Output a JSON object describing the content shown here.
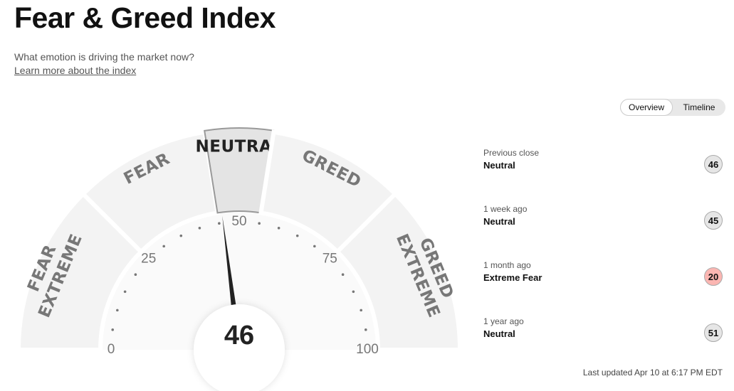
{
  "header": {
    "title": "Fear & Greed Index",
    "subtitle": "What emotion is driving the market now?",
    "link": "Learn more about the index"
  },
  "tabs": [
    "Overview",
    "Timeline"
  ],
  "chart_data": {
    "type": "gauge",
    "value": 46,
    "xlim": [
      0,
      100
    ],
    "xticks": [
      0,
      25,
      50,
      75,
      100
    ],
    "minor_ticks": [
      5,
      10,
      15,
      20,
      30,
      35,
      40,
      45,
      55,
      60,
      65,
      70,
      80,
      85,
      90,
      95
    ],
    "bands": [
      {
        "label": [
          "EXTREME",
          "FEAR"
        ],
        "from": 0,
        "to": 25
      },
      {
        "label": [
          "FEAR"
        ],
        "from": 25,
        "to": 45
      },
      {
        "label": [
          "NEUTRAL"
        ],
        "from": 45,
        "to": 55
      },
      {
        "label": [
          "GREED"
        ],
        "from": 55,
        "to": 75
      },
      {
        "label": [
          "EXTREME",
          "GREED"
        ],
        "from": 75,
        "to": 100
      }
    ]
  },
  "history": [
    {
      "period": "Previous close",
      "rating": "Neutral",
      "value": 46,
      "color": "#e6e6e6"
    },
    {
      "period": "1 week ago",
      "rating": "Neutral",
      "value": 45,
      "color": "#e6e6e6"
    },
    {
      "period": "1 month ago",
      "rating": "Extreme Fear",
      "value": 20,
      "color": "#fbb6b2"
    },
    {
      "period": "1 year ago",
      "rating": "Neutral",
      "value": 51,
      "color": "#e6e6e6"
    }
  ],
  "updated": "Last updated Apr 10 at 6:17 PM EDT"
}
